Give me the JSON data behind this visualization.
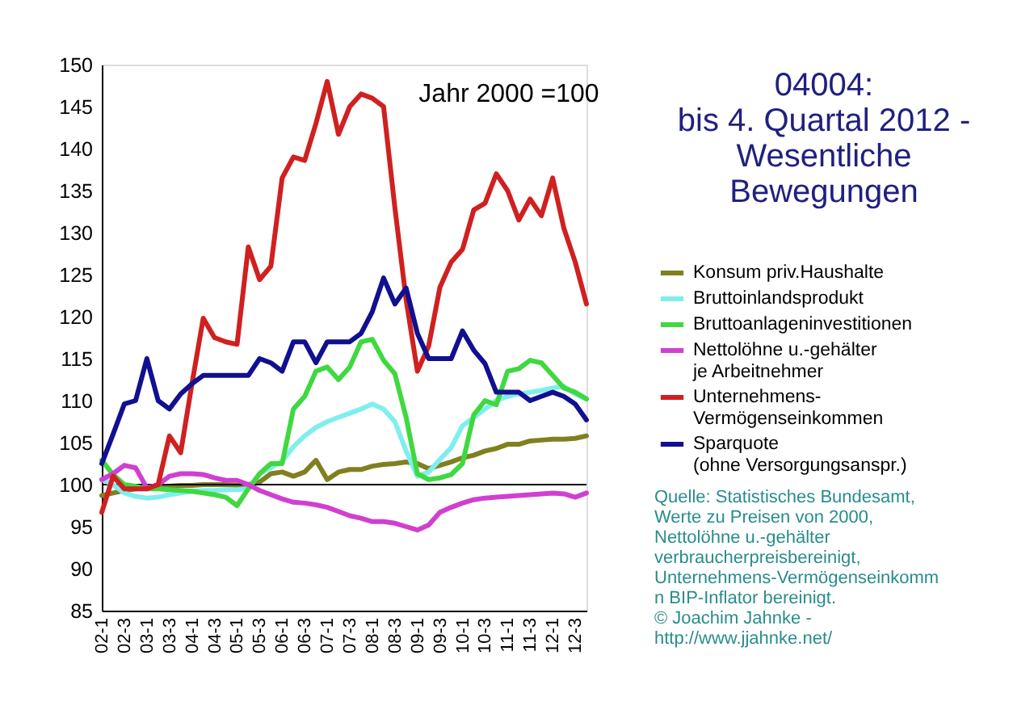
{
  "chart_data": {
    "type": "line",
    "title": "04004:\nbis 4. Quartal 2012 -\nWesentliche\nBewegungen",
    "categories": [
      "02-1",
      null,
      "02-3",
      null,
      "03-1",
      null,
      "03-3",
      null,
      "04-1",
      null,
      "04-3",
      null,
      "05-1",
      null,
      "05-3",
      null,
      "06-1",
      null,
      "06-3",
      null,
      "07-1",
      null,
      "07-3",
      null,
      "08-1",
      null,
      "08-3",
      null,
      "09-1",
      null,
      "09-3",
      null,
      "10-1",
      null,
      "10-3",
      null,
      "11-1",
      null,
      "11-3",
      null,
      "12-1",
      null,
      "12-3",
      null
    ],
    "series": [
      {
        "name": "Konsum priv.Haushalte",
        "color": "#808020",
        "values": [
          98.7,
          99,
          99.3,
          99.5,
          99.6,
          99.8,
          99.8,
          99.9,
          99.9,
          100,
          100,
          100,
          99.9,
          100,
          100.3,
          101.3,
          101.5,
          101,
          101.5,
          102.9,
          100.6,
          101.5,
          101.8,
          101.8,
          102.2,
          102.4,
          102.5,
          102.7,
          102.5,
          101.9,
          102.3,
          102.7,
          103.2,
          103.5,
          104,
          104.3,
          104.8,
          104.8,
          105.2,
          105.3,
          105.4,
          105.4,
          105.5,
          105.8
        ]
      },
      {
        "name": "Bruttoinlandsprodukt",
        "color": "#80eeee",
        "values": [
          100.6,
          100,
          99,
          98.6,
          98.4,
          98.5,
          98.8,
          99,
          99.2,
          99.3,
          99.3,
          99.4,
          99.4,
          99.5,
          101.3,
          102,
          102.8,
          104.5,
          105.8,
          106.8,
          107.5,
          108,
          108.5,
          109,
          109.6,
          109,
          107.5,
          104,
          101,
          101.5,
          103,
          104.4,
          107,
          108,
          109,
          110,
          110.5,
          110.8,
          111,
          111.2,
          111.5,
          111.7,
          110.8,
          110.2
        ]
      },
      {
        "name": "Bruttoanlageninvestitionen",
        "color": "#40d840",
        "values": [
          102.9,
          101.2,
          100,
          99.8,
          99.5,
          99.5,
          99.4,
          99.3,
          99.2,
          99,
          98.8,
          98.5,
          97.5,
          99.5,
          101.3,
          102.5,
          102.5,
          109,
          110.5,
          113.5,
          114,
          112.5,
          114,
          117,
          117.3,
          114.8,
          113.2,
          108,
          101.3,
          100.6,
          100.8,
          101.2,
          102.5,
          108.3,
          110,
          109.5,
          113.5,
          113.8,
          114.8,
          114.5,
          113,
          111.5,
          111,
          110.2
        ]
      },
      {
        "name": "Nettolöhne u.-gehälter\n je Arbeitnehmer",
        "color": "#d040d0",
        "values": [
          100.6,
          101.3,
          102.3,
          102,
          99.6,
          100,
          101,
          101.3,
          101.3,
          101.2,
          100.8,
          100.5,
          100.5,
          100,
          99.3,
          98.8,
          98.3,
          97.9,
          97.8,
          97.6,
          97.3,
          96.8,
          96.3,
          96,
          95.6,
          95.6,
          95.4,
          95,
          94.6,
          95.2,
          96.7,
          97.3,
          97.8,
          98.2,
          98.4,
          98.5,
          98.6,
          98.7,
          98.8,
          98.9,
          99,
          98.9,
          98.5,
          99
        ]
      },
      {
        "name": "Unternehmens-\nVermögenseinkommen",
        "color": "#d02020",
        "values": [
          96.7,
          101,
          99.5,
          99.5,
          99.5,
          100,
          105.8,
          103.8,
          112,
          119.8,
          117.5,
          117,
          116.7,
          128.3,
          124.4,
          126,
          136.5,
          139,
          138.6,
          143,
          148,
          141.7,
          145,
          146.5,
          146,
          145,
          133,
          122,
          113.5,
          116.5,
          123.5,
          126.5,
          128,
          132.7,
          133.5,
          137,
          135,
          131.5,
          134,
          132,
          136.5,
          130.5,
          126.5,
          121.5
        ]
      },
      {
        "name": "Sparquote\n(ohne Versorgungsanspr.)",
        "color": "#101090",
        "values": [
          102.5,
          106,
          109.6,
          110,
          115,
          110,
          109,
          110.8,
          112,
          113,
          113,
          113,
          113,
          113,
          115,
          114.5,
          113.5,
          117,
          117,
          114.5,
          117,
          117,
          117,
          118,
          120.6,
          124.6,
          121.5,
          123.4,
          118,
          115,
          115,
          115,
          118.3,
          116,
          114.4,
          111,
          111,
          111,
          110,
          110.5,
          111,
          110.5,
          109.6,
          107.7
        ]
      }
    ],
    "ylim": [
      85,
      150
    ],
    "yticks": [
      85,
      90,
      95,
      100,
      105,
      110,
      115,
      120,
      125,
      130,
      135,
      140,
      145,
      150
    ],
    "ref_lines": [
      {
        "axis": "y",
        "value": 100,
        "color": "#000000"
      }
    ],
    "annotations": [
      "Jahr 2000 =100",
      "Quelle: Statistisches Bundesamt,\nWerte zu Preisen von 2000,\nNettolöhne u.-gehälter\nverbraucherpreisbereinigt,\nUnternehmens-Vermögenseinkomm\nn BIP-Inflator bereinigt.\n© Joachim Jahnke -\nhttp://www.jjahnke.net/"
    ],
    "legend": "right",
    "grid": false
  }
}
